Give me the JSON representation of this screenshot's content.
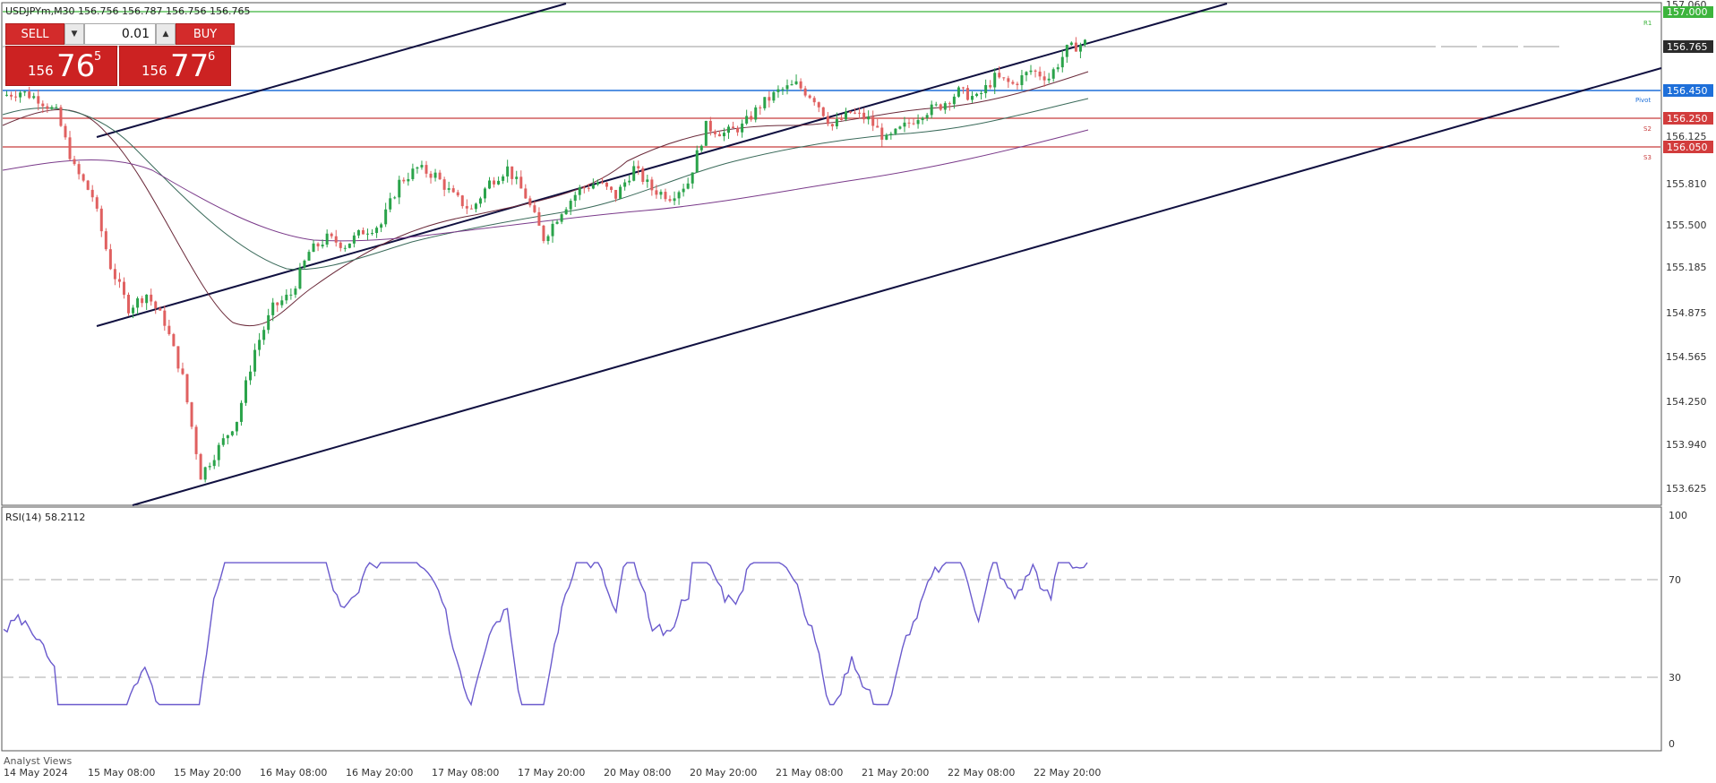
{
  "header": {
    "symbol_line": "USDJPYm,M30  156.756 156.787 156.756 156.765"
  },
  "trade_panel": {
    "sell_label": "SELL",
    "buy_label": "BUY",
    "lot_value": "0.01",
    "sell_price_small": "156",
    "sell_price_big": "76",
    "sell_price_sup": "5",
    "buy_price_small": "156",
    "buy_price_big": "77",
    "buy_price_sup": "6"
  },
  "price_axis": {
    "ticks": [
      "157.060",
      "156.765",
      "156.450",
      "156.250",
      "156.125",
      "156.050",
      "155.810",
      "155.500",
      "155.185",
      "154.875",
      "154.565",
      "154.250",
      "153.940",
      "153.625"
    ],
    "current_price": "156.765",
    "level_labels": {
      "r1": "157.000",
      "pivot": "156.450",
      "s2": "156.250",
      "s3": "156.050"
    },
    "level_tags": {
      "r1": "R1",
      "pivot": "Pivot",
      "s2": "S2",
      "s3": "S3"
    },
    "colors": {
      "r1": "#3cb43c",
      "pivot": "#1e6fd9",
      "s2": "#d23c3c",
      "s3": "#d23c3c",
      "current": "#2b2b2b"
    }
  },
  "time_axis": {
    "labels": [
      "14 May 2024",
      "15 May 08:00",
      "15 May 20:00",
      "16 May 08:00",
      "16 May 20:00",
      "17 May 08:00",
      "17 May 20:00",
      "20 May 08:00",
      "20 May 20:00",
      "21 May 08:00",
      "21 May 20:00",
      "22 May 08:00",
      "22 May 20:00"
    ]
  },
  "rsi_panel": {
    "title": "RSI(14) 58.2112",
    "ticks": [
      "100",
      "70",
      "30",
      "0"
    ]
  },
  "footer": {
    "analyst_views": "Analyst Views"
  },
  "chart_data": {
    "type": "candlestick",
    "timeframe": "M30",
    "ylim": [
      153.5,
      157.08
    ],
    "candles_close_path": [
      156.42,
      156.45,
      156.4,
      156.3,
      155.9,
      155.7,
      155.2,
      154.9,
      155.0,
      154.8,
      154.4,
      153.7,
      153.9,
      154.1,
      154.6,
      154.9,
      155.0,
      155.3,
      155.4,
      155.35,
      155.45,
      155.5,
      155.8,
      155.9,
      155.85,
      155.7,
      155.6,
      155.8,
      155.9,
      155.7,
      155.4,
      155.6,
      155.75,
      155.8,
      155.7,
      155.9,
      155.75,
      155.7,
      155.8,
      156.2,
      156.15,
      156.2,
      156.35,
      156.45,
      156.5,
      156.4,
      156.2,
      156.3,
      156.25,
      156.1,
      156.2,
      156.3,
      156.35,
      156.45,
      156.4,
      156.55,
      156.5,
      156.6,
      156.55,
      156.75,
      156.8
    ]
  }
}
